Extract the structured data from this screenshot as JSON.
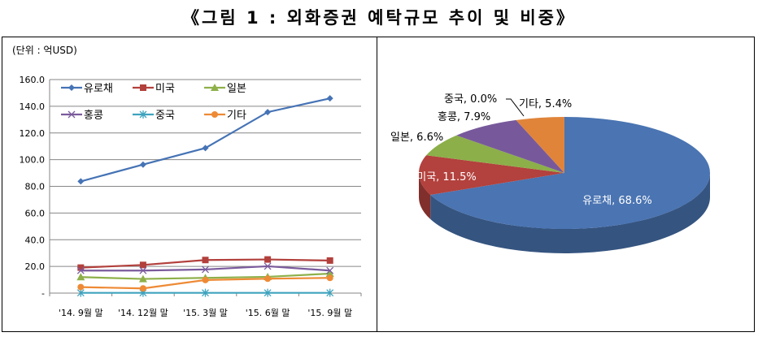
{
  "title": "《그림 1 : 외화증권 예탁규모 추이 및 비중》",
  "chart_data": [
    {
      "type": "line",
      "unit_label": "(단위 : 억USD)",
      "categories": [
        "'14. 9월 말",
        "'14. 12월 말",
        "'15. 3월 말",
        "'15. 6월 말",
        "'15. 9월 말"
      ],
      "ylim": [
        0,
        160
      ],
      "yticks": [
        "-",
        "20.0",
        "40.0",
        "60.0",
        "80.0",
        "100.0",
        "120.0",
        "140.0",
        "160.0"
      ],
      "grid": true,
      "legend_position": "top-left inside",
      "series": [
        {
          "name": "유로채",
          "color": "#4573B5",
          "marker": "diamond",
          "values": [
            83.7,
            96.3,
            108.7,
            135.6,
            145.9
          ]
        },
        {
          "name": "미국",
          "color": "#B2403C",
          "marker": "square",
          "values": [
            19.1,
            21.1,
            24.8,
            25.2,
            24.4
          ]
        },
        {
          "name": "일본",
          "color": "#8EB04A",
          "marker": "triangle",
          "values": [
            12.0,
            10.6,
            11.4,
            12.2,
            14.6
          ]
        },
        {
          "name": "홍콩",
          "color": "#7A5A9C",
          "marker": "x",
          "values": [
            16.9,
            16.9,
            17.7,
            20.1,
            16.9
          ]
        },
        {
          "name": "중국",
          "color": "#3FA3BE",
          "marker": "star",
          "values": [
            0.2,
            0.2,
            0.2,
            0.2,
            0.2
          ]
        },
        {
          "name": "기타",
          "color": "#EE8A35",
          "marker": "circle",
          "values": [
            4.5,
            3.5,
            9.8,
            10.8,
            11.4
          ]
        }
      ]
    },
    {
      "type": "pie",
      "style": "3d",
      "slices": [
        {
          "name": "유로채",
          "value": 68.6,
          "label": "유로채, 68.6%",
          "color": "#4A74B2"
        },
        {
          "name": "미국",
          "value": 11.5,
          "label": "미국, 11.5%",
          "color": "#B3413D"
        },
        {
          "name": "일본",
          "value": 6.6,
          "label": "일본, 6.6%",
          "color": "#8CAF4A"
        },
        {
          "name": "홍콩",
          "value": 7.9,
          "label": "홍콩, 7.9%",
          "color": "#77599B"
        },
        {
          "name": "중국",
          "value": 0.0,
          "label": "중국, 0.0%",
          "color": "#3FA3BE"
        },
        {
          "name": "기타",
          "value": 5.4,
          "label": "기타, 5.4%",
          "color": "#E0843A"
        }
      ]
    }
  ]
}
